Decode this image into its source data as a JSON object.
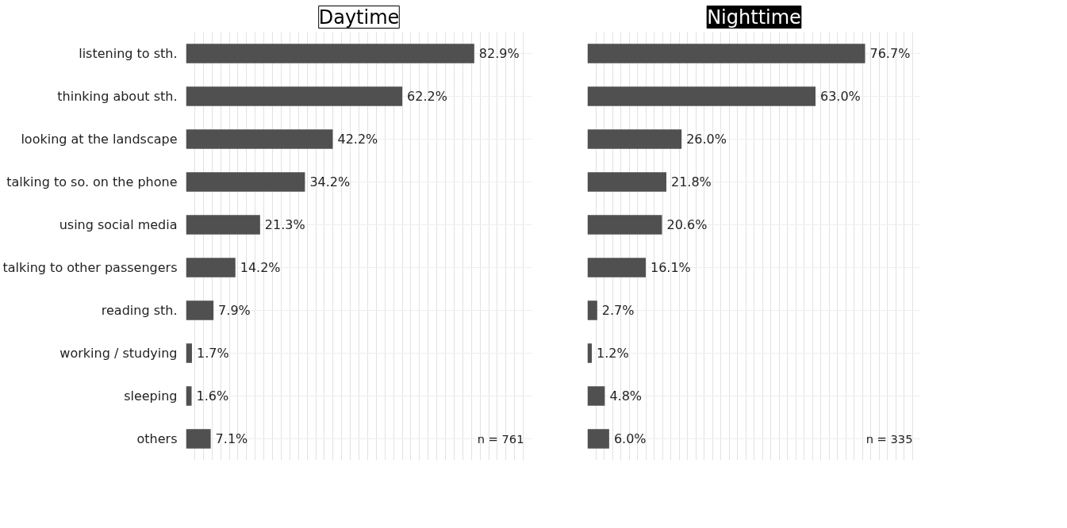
{
  "chart_data": [
    {
      "type": "bar",
      "orientation": "horizontal",
      "title": "Daytime",
      "categories": [
        "listening to sth.",
        "thinking about sth.",
        "looking at the landscape",
        "talking to so. on the phone",
        "using social media",
        "talking to other passengers",
        "reading sth.",
        "working / studying",
        "sleeping",
        "others"
      ],
      "series": [
        {
          "color": "#505050",
          "values": [
            82.9,
            62.2,
            42.2,
            34.2,
            21.3,
            14.2,
            7.9,
            1.7,
            1.6,
            7.1
          ],
          "value_labels": [
            "82.9%",
            "62.2%",
            "42.2%",
            "34.2%",
            "21.3%",
            "14.2%",
            "7.9%",
            "1.7%",
            "1.6%",
            "7.1%"
          ]
        }
      ],
      "grid": true,
      "tick_labels": "y",
      "annotations": [
        "n = 761"
      ]
    },
    {
      "type": "bar",
      "orientation": "horizontal",
      "title": "Nighttime",
      "categories": [
        null,
        null,
        null,
        null,
        null,
        null,
        null,
        null,
        null,
        null
      ],
      "series": [
        {
          "color": "#505050",
          "values": [
            76.7,
            63.0,
            26.0,
            21.8,
            20.6,
            16.1,
            2.7,
            1.2,
            4.8,
            6.0
          ],
          "value_labels": [
            "76.7%",
            "63.0%",
            "26.0%",
            "21.8%",
            "20.6%",
            "16.1%",
            "2.7%",
            "1.2%",
            "4.8%",
            "6.0%"
          ]
        }
      ],
      "grid": true,
      "tick_labels": false,
      "annotations": [
        "n = 335"
      ]
    }
  ]
}
